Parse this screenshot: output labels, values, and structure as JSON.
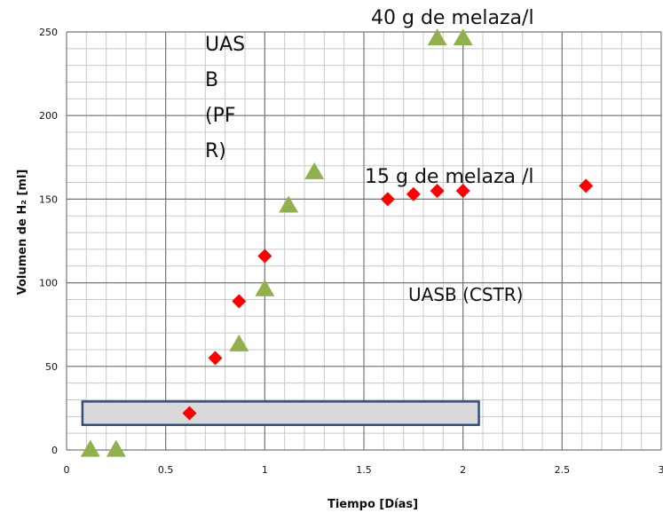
{
  "chart_data": {
    "type": "scatter",
    "xlabel": "Tiempo [Días]",
    "ylabel": "Volumen de H₂ [ml]",
    "xlim": [
      0,
      3
    ],
    "ylim": [
      0,
      250
    ],
    "x_ticks": [
      "0",
      "0.5",
      "1",
      "1.5",
      "2",
      "2.5",
      "3"
    ],
    "y_ticks": [
      "0",
      "50",
      "100",
      "150",
      "200",
      "250"
    ],
    "grid": true,
    "series": [
      {
        "marker": "triangle",
        "color": "#8fb04a",
        "points": [
          {
            "x": 0.12,
            "y": 0
          },
          {
            "x": 0.25,
            "y": 0
          },
          {
            "x": 0.87,
            "y": 63
          },
          {
            "x": 1.0,
            "y": 96
          },
          {
            "x": 1.12,
            "y": 146
          },
          {
            "x": 1.25,
            "y": 166
          },
          {
            "x": 1.87,
            "y": 246
          },
          {
            "x": 2.0,
            "y": 246
          }
        ]
      },
      {
        "marker": "diamond",
        "color": "#ff0000",
        "points": [
          {
            "x": 0.62,
            "y": 22
          },
          {
            "x": 0.75,
            "y": 55
          },
          {
            "x": 0.87,
            "y": 89
          },
          {
            "x": 1.0,
            "y": 116
          },
          {
            "x": 1.62,
            "y": 150
          },
          {
            "x": 1.75,
            "y": 153
          },
          {
            "x": 1.87,
            "y": 155
          },
          {
            "x": 2.0,
            "y": 155
          },
          {
            "x": 2.62,
            "y": 158
          }
        ]
      }
    ],
    "annotations": {
      "uasb_pfr_lines": [
        "UAS",
        "B",
        "(PF",
        "R)"
      ],
      "label_40g": "40 g de melaza/l",
      "label_15g": "15 g de melaza /l",
      "label_cstr": "UASB (CSTR)"
    },
    "highlight_box": {
      "x_start": 0.08,
      "x_end": 2.08,
      "y_start": 15,
      "y_end": 29,
      "fill": "#d9d9d9",
      "stroke": "#2f4f7f"
    }
  }
}
